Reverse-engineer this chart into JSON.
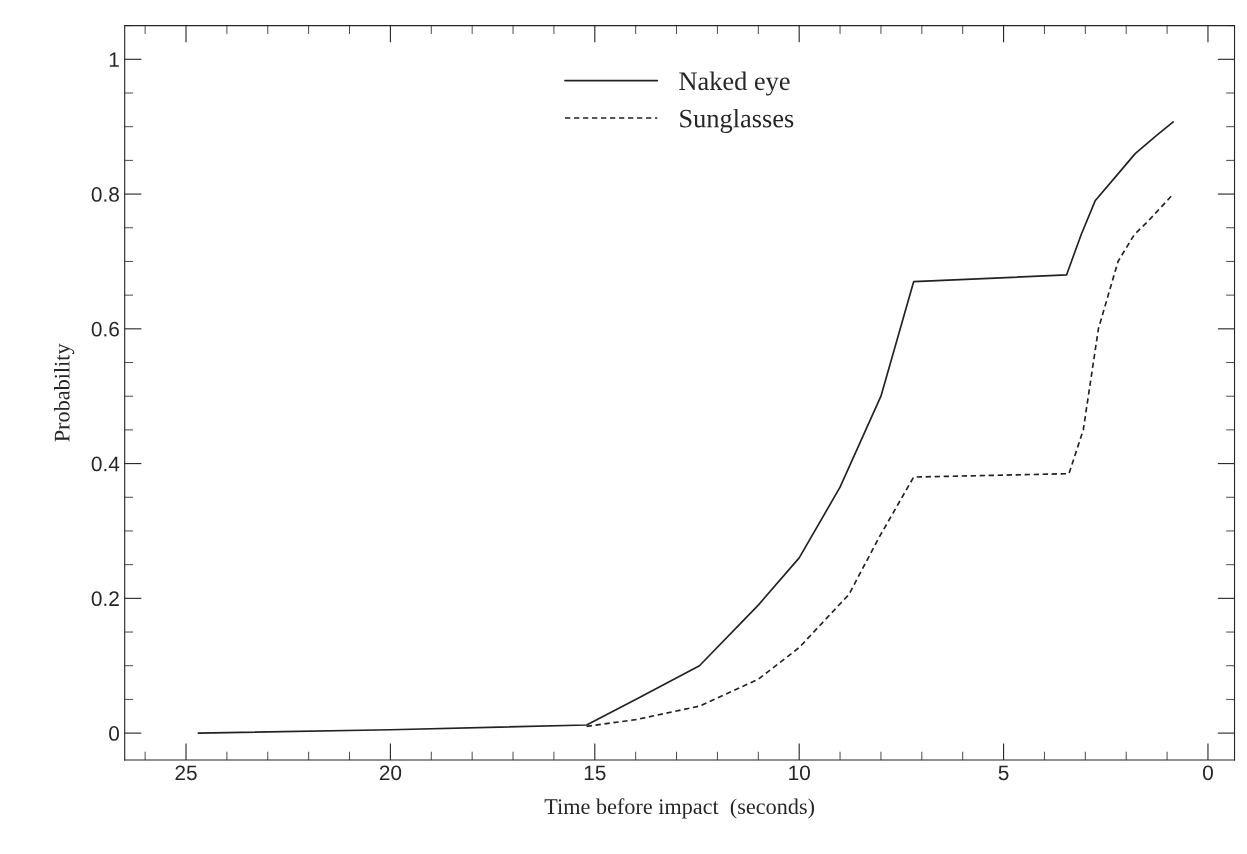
{
  "chart_data": {
    "type": "line",
    "xlabel": "Time before impact  (seconds)",
    "ylabel": "Probability",
    "xlim": [
      26.5,
      -0.65
    ],
    "xticks": [
      25,
      20,
      15,
      10,
      5,
      0
    ],
    "ylim": [
      -0.04,
      1.05
    ],
    "yticks": [
      0,
      0.2,
      0.4,
      0.6,
      0.8,
      1
    ],
    "legend": "top",
    "grid": false,
    "series": [
      {
        "name": "Naked eye",
        "color": "#222222",
        "line_style": "solid",
        "x": [
          24.7,
          20,
          15.2,
          14,
          12.44,
          11,
          10,
          9,
          8,
          7.2,
          3.46,
          3.1,
          2.76,
          2.2,
          1.78,
          1.3,
          0.85
        ],
        "values": [
          0.0,
          0.005,
          0.012,
          0.05,
          0.1,
          0.19,
          0.26,
          0.365,
          0.5,
          0.67,
          0.68,
          0.74,
          0.79,
          0.83,
          0.86,
          0.885,
          0.907
        ]
      },
      {
        "name": "Sunglasses",
        "color": "#222222",
        "line_style": "dashed",
        "x": [
          15.2,
          14,
          12.44,
          11,
          10,
          8.78,
          8.05,
          7.2,
          3.4,
          3.05,
          2.68,
          2.2,
          1.8,
          1.46,
          0.85
        ],
        "values": [
          0.01,
          0.02,
          0.04,
          0.08,
          0.127,
          0.206,
          0.29,
          0.38,
          0.385,
          0.45,
          0.6,
          0.7,
          0.74,
          0.76,
          0.8
        ]
      }
    ]
  }
}
